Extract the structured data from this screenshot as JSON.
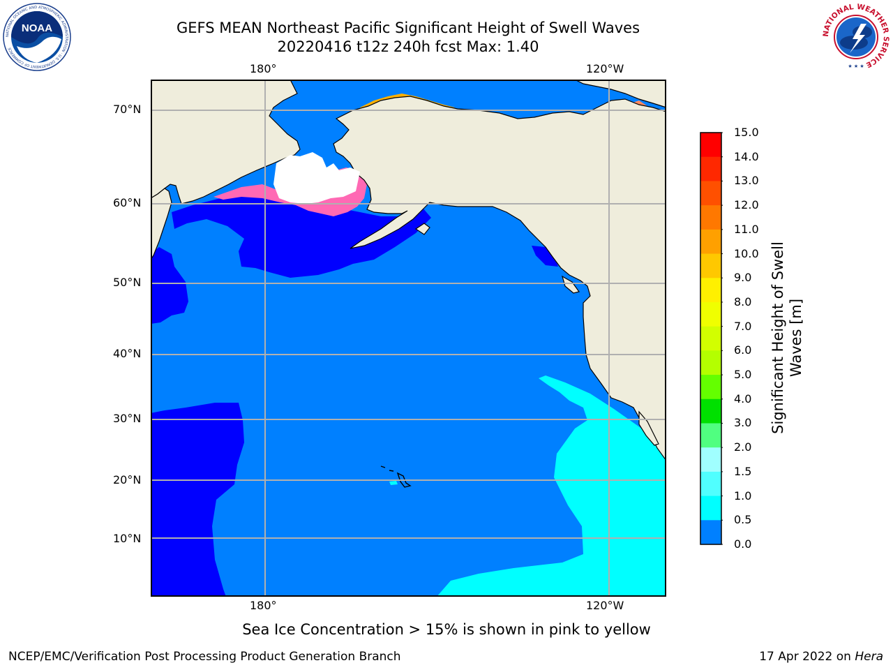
{
  "header": {
    "title_line1": "GEFS MEAN Northeast Pacific Significant Height of Swell Waves",
    "title_line2": "20220416 t12z 240h fcst   Max: 1.40"
  },
  "logos": {
    "left": {
      "name": "noaa-logo",
      "text": "NOAA",
      "ring_text": "NATIONAL OCEANIC AND ATMOSPHERIC ADMINISTRATION · U.S. DEPARTMENT OF COMMERCE"
    },
    "right": {
      "name": "nws-logo",
      "ring_text": "NATIONAL WEATHER SERVICE"
    }
  },
  "map": {
    "projection": "mercator",
    "lon_range": [
      "170°E",
      "110°W"
    ],
    "lat_range": [
      1,
      73
    ],
    "lon_ticks_top": [
      "180°",
      "120°W"
    ],
    "lon_ticks_bottom": [
      "180°",
      "120°W"
    ],
    "lat_ticks": [
      "70°N",
      "60°N",
      "50°N",
      "40°N",
      "30°N",
      "20°N",
      "10°N"
    ],
    "grid": true,
    "colors": {
      "land": "#efeddc",
      "ocean_0_0_5": "#0000ff",
      "ocean_0_5_1_0": "#0080ff",
      "ocean_1_0_1_5": "#00ffff",
      "sea_ice": "#ff69b4",
      "coastline": "#000000"
    }
  },
  "colorbar": {
    "label": "Significant Height of Swell Waves [m]",
    "label_line1": "Significant Height of Swell",
    "label_line2": "Waves [m]",
    "ticks": [
      "15.0",
      "14.0",
      "13.0",
      "12.0",
      "11.0",
      "10.0",
      "9.0",
      "8.0",
      "7.0",
      "6.0",
      "5.0",
      "4.0",
      "3.0",
      "2.0",
      "1.5",
      "1.0",
      "0.5",
      "0.0"
    ],
    "colors": [
      "#ff0000",
      "#ff2800",
      "#ff5000",
      "#ff7800",
      "#ffa000",
      "#ffc800",
      "#fff000",
      "#f0ff00",
      "#d2ff00",
      "#b4ff00",
      "#64ff00",
      "#00e000",
      "#50ff80",
      "#a0ffff",
      "#50ffff",
      "#00ffff",
      "#0080ff",
      "#0000ff"
    ]
  },
  "caption": "Sea Ice Concentration > 15% is shown in pink to yellow",
  "footer": {
    "left": "NCEP/EMC/Verification Post Processing Product Generation Branch",
    "right_prefix": "17 Apr 2022 on ",
    "right_italic": "Hera"
  }
}
